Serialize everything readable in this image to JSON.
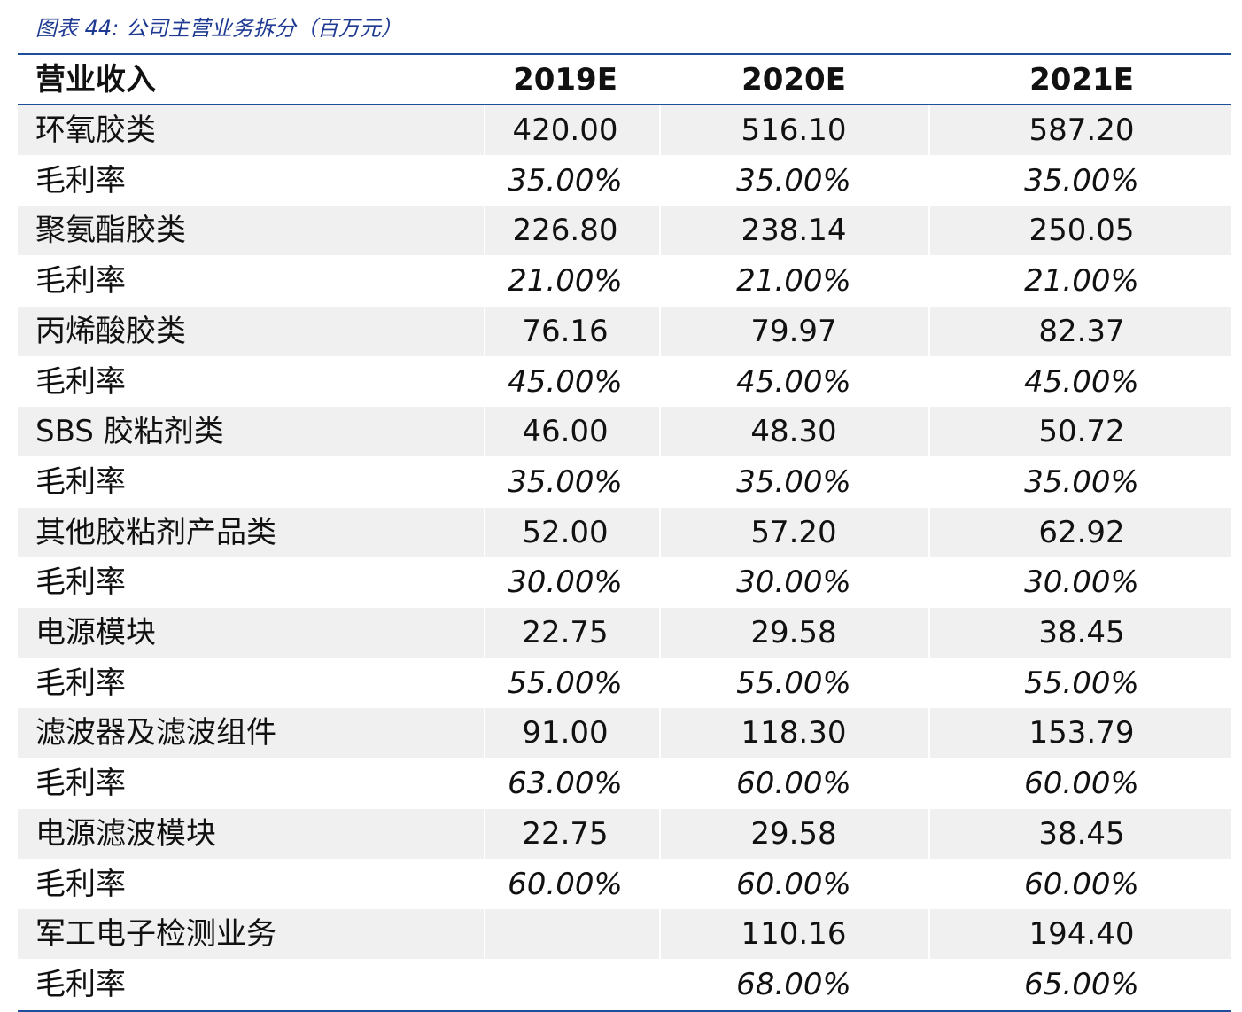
{
  "header": {
    "title": "图表 44: 公司主营业务拆分（百万元）"
  },
  "table": {
    "columns": [
      "营业收入",
      "2019E",
      "2020E",
      "2021E"
    ],
    "rows": [
      {
        "label": "环氧胶类",
        "cells": [
          "420.00",
          "516.10",
          "587.20"
        ]
      },
      {
        "label": "毛利率",
        "cells": [
          "35.00%",
          "35.00%",
          "35.00%"
        ]
      },
      {
        "label": "聚氨酯胶类",
        "cells": [
          "226.80",
          "238.14",
          "250.05"
        ]
      },
      {
        "label": "毛利率",
        "cells": [
          "21.00%",
          "21.00%",
          "21.00%"
        ]
      },
      {
        "label": "丙烯酸胶类",
        "cells": [
          "76.16",
          "79.97",
          "82.37"
        ]
      },
      {
        "label": "毛利率",
        "cells": [
          "45.00%",
          "45.00%",
          "45.00%"
        ]
      },
      {
        "label": "SBS 胶粘剂类",
        "cells": [
          "46.00",
          "48.30",
          "50.72"
        ]
      },
      {
        "label": "毛利率",
        "cells": [
          "35.00%",
          "35.00%",
          "35.00%"
        ]
      },
      {
        "label": "其他胶粘剂产品类",
        "cells": [
          "52.00",
          "57.20",
          "62.92"
        ]
      },
      {
        "label": "毛利率",
        "cells": [
          "30.00%",
          "30.00%",
          "30.00%"
        ]
      },
      {
        "label": "电源模块",
        "cells": [
          "22.75",
          "29.58",
          "38.45"
        ]
      },
      {
        "label": "毛利率",
        "cells": [
          "55.00%",
          "55.00%",
          "55.00%"
        ]
      },
      {
        "label": "滤波器及滤波组件",
        "cells": [
          "91.00",
          "118.30",
          "153.79"
        ]
      },
      {
        "label": "毛利率",
        "cells": [
          "63.00%",
          "60.00%",
          "60.00%"
        ]
      },
      {
        "label": "电源滤波模块",
        "cells": [
          "22.75",
          "29.58",
          "38.45"
        ]
      },
      {
        "label": "毛利率",
        "cells": [
          "60.00%",
          "60.00%",
          "60.00%"
        ]
      },
      {
        "label": "军工电子检测业务",
        "cells": [
          null,
          "110.16",
          "194.40"
        ]
      },
      {
        "label": "毛利率",
        "cells": [
          null,
          "68.00%",
          "65.00%"
        ]
      }
    ]
  }
}
